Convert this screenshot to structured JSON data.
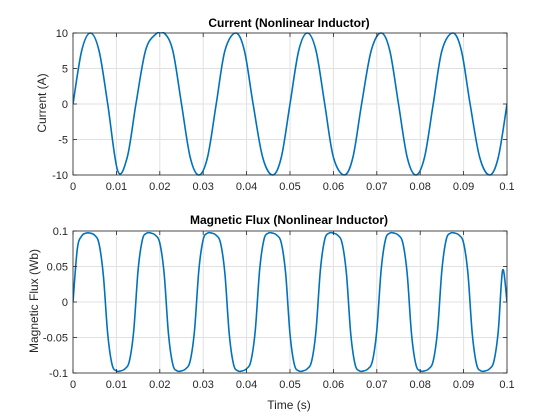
{
  "chart_data": [
    {
      "type": "line",
      "title": "Current (Nonlinear Inductor)",
      "xlabel": "",
      "ylabel": "Current (A)",
      "xlim": [
        0,
        0.1
      ],
      "ylim": [
        -10,
        10
      ],
      "xticks": [
        "0",
        "0.01",
        "0.02",
        "0.03",
        "0.04",
        "0.05",
        "0.06",
        "0.07",
        "0.08",
        "0.09",
        "0.1"
      ],
      "xtick_values": [
        0,
        0.01,
        0.02,
        0.03,
        0.04,
        0.05,
        0.06,
        0.07,
        0.08,
        0.09,
        0.1
      ],
      "yticks": [
        "-10",
        "-5",
        "0",
        "5",
        "10"
      ],
      "ytick_values": [
        -10,
        -5,
        0,
        5,
        10
      ],
      "grid": true,
      "color": "#0072bd",
      "series": [
        {
          "x": [
            0,
            0.002,
            0.004,
            0.006,
            0.008,
            0.0103,
            0.0125,
            0.0145,
            0.0167,
            0.019,
            0.021,
            0.023,
            0.025,
            0.027,
            0.029,
            0.031,
            0.033,
            0.035,
            0.0375,
            0.0395,
            0.0415,
            0.0437,
            0.046,
            0.048,
            0.05,
            0.052,
            0.054,
            0.056,
            0.058,
            0.06,
            0.0625,
            0.0645,
            0.0665,
            0.0687,
            0.071,
            0.073,
            0.075,
            0.077,
            0.079,
            0.081,
            0.083,
            0.085,
            0.0875,
            0.0895,
            0.0915,
            0.0937,
            0.096,
            0.098,
            0.1
          ],
          "y": [
            0,
            7.5,
            10,
            7.5,
            0,
            -9.4,
            -7.5,
            0,
            7.5,
            9.8,
            10,
            7.5,
            0,
            -7.5,
            -10,
            -7.5,
            0,
            7.5,
            10,
            7.5,
            0,
            -7.5,
            -10,
            -7.5,
            0,
            7.5,
            10,
            7.5,
            0,
            -7.5,
            -10,
            -7.5,
            0,
            7.5,
            10,
            7.5,
            0,
            -7.5,
            -10,
            -7.5,
            0,
            7.5,
            10,
            7.5,
            0,
            -7.5,
            -10,
            -7.5,
            0
          ]
        }
      ]
    },
    {
      "type": "line",
      "title": "Magnetic Flux (Nonlinear Inductor)",
      "xlabel": "Time (s)",
      "ylabel": "Magnetic Flux (Wb)",
      "xlim": [
        0,
        0.1
      ],
      "ylim": [
        -0.1,
        0.1
      ],
      "xticks": [
        "0",
        "0.01",
        "0.02",
        "0.03",
        "0.04",
        "0.05",
        "0.06",
        "0.07",
        "0.08",
        "0.09",
        "0.1"
      ],
      "xtick_values": [
        0,
        0.01,
        0.02,
        0.03,
        0.04,
        0.05,
        0.06,
        0.07,
        0.08,
        0.09,
        0.1
      ],
      "yticks": [
        "-0.1",
        "-0.05",
        "0",
        "0.05",
        "0.1"
      ],
      "ytick_values": [
        -0.1,
        -0.05,
        0,
        0.05,
        0.1
      ],
      "grid": true,
      "color": "#0072bd",
      "series": [
        {
          "x": [
            0,
            0.001,
            0.002,
            0.003,
            0.004,
            0.005,
            0.006,
            0.007,
            0.008,
            0.009,
            0.01,
            0.011,
            0.012,
            0.013,
            0.014,
            0.015,
            0.016,
            0.017,
            0.018,
            0.019,
            0.02,
            0.021,
            0.022,
            0.023,
            0.024,
            0.025,
            0.026,
            0.027,
            0.028,
            0.029,
            0.03,
            0.031,
            0.032,
            0.033,
            0.034,
            0.035,
            0.036,
            0.037,
            0.038,
            0.039,
            0.04,
            0.041,
            0.042,
            0.043,
            0.044,
            0.045,
            0.046,
            0.047,
            0.048,
            0.049,
            0.05,
            0.051,
            0.052,
            0.053,
            0.054,
            0.055,
            0.056,
            0.057,
            0.058,
            0.059,
            0.06,
            0.061,
            0.062,
            0.063,
            0.064,
            0.065,
            0.066,
            0.067,
            0.068,
            0.069,
            0.07,
            0.071,
            0.072,
            0.073,
            0.074,
            0.075,
            0.076,
            0.077,
            0.078,
            0.079,
            0.08,
            0.081,
            0.082,
            0.083,
            0.084,
            0.085,
            0.086,
            0.087,
            0.088,
            0.089,
            0.09,
            0.091,
            0.092,
            0.093,
            0.094,
            0.095,
            0.096,
            0.097,
            0.098,
            0.099,
            0.1
          ],
          "y": [
            0,
            0.075,
            0.093,
            0.097,
            0.097,
            0.094,
            0.082,
            0.037,
            -0.045,
            -0.088,
            -0.097,
            -0.097,
            -0.094,
            -0.083,
            -0.04,
            0.045,
            0.088,
            0.097,
            0.097,
            0.094,
            0.083,
            0.04,
            -0.045,
            -0.088,
            -0.097,
            -0.097,
            -0.094,
            -0.083,
            -0.04,
            0.045,
            0.088,
            0.097,
            0.097,
            0.094,
            0.083,
            0.04,
            -0.045,
            -0.088,
            -0.097,
            -0.097,
            -0.094,
            -0.083,
            -0.04,
            0.045,
            0.088,
            0.097,
            0.097,
            0.094,
            0.083,
            0.04,
            -0.045,
            -0.088,
            -0.097,
            -0.097,
            -0.094,
            -0.083,
            -0.04,
            0.045,
            0.088,
            0.097,
            0.097,
            0.094,
            0.083,
            0.04,
            -0.045,
            -0.088,
            -0.097,
            -0.097,
            -0.094,
            -0.083,
            -0.04,
            0.045,
            0.088,
            0.097,
            0.097,
            0.094,
            0.083,
            0.04,
            -0.045,
            -0.088,
            -0.097,
            -0.097,
            -0.094,
            -0.083,
            -0.04,
            0.045,
            0.088,
            0.097,
            0.097,
            0.094,
            0.083,
            0.04,
            -0.045,
            -0.088,
            -0.097,
            -0.097,
            -0.094,
            -0.083,
            -0.04,
            0.045,
            0.0
          ]
        }
      ]
    }
  ]
}
